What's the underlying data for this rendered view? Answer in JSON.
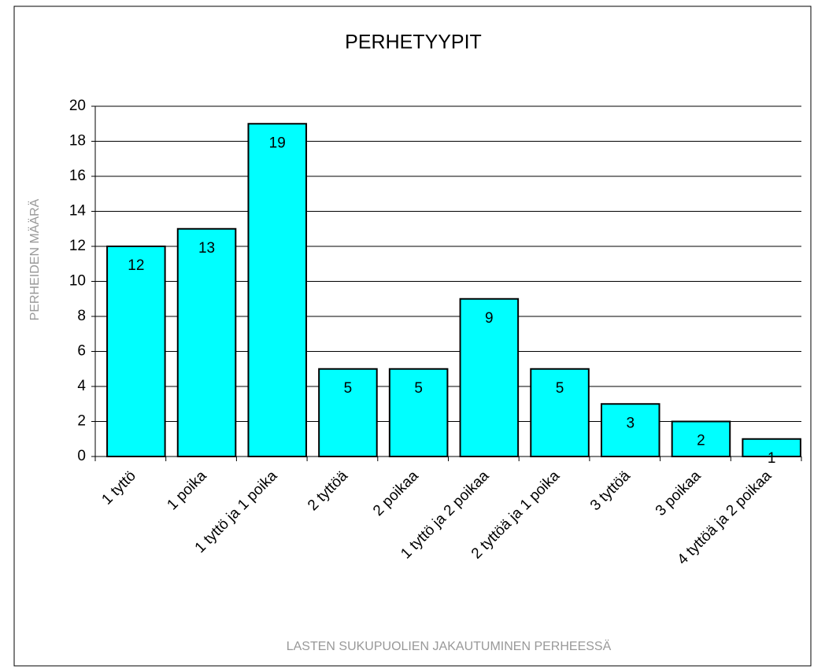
{
  "chart_data": {
    "type": "bar",
    "title": "PERHETYYPIT",
    "x_label": "LASTEN SUKUPUOLIEN JAKAUTUMINEN PERHEESSÄ",
    "y_label": "PERHEIDEN MÄÄRÄ",
    "categories": [
      "1 tyttö",
      "1 poika",
      "1 tyttö ja 1 poika",
      "2 tyttöä",
      "2 poikaa",
      "1 tyttö ja 2 poikaa",
      "2 tyttöä ja 1 poika",
      "3 tyttöä",
      "3 poikaa",
      "4 tyttöä ja 2 poikaa"
    ],
    "values": [
      12,
      13,
      19,
      5,
      5,
      9,
      5,
      3,
      2,
      1
    ],
    "color": "#00ffff",
    "ylim": [
      0,
      20
    ],
    "yticks": [
      0,
      2,
      4,
      6,
      8,
      10,
      12,
      14,
      16,
      18,
      20
    ],
    "grid": true
  }
}
